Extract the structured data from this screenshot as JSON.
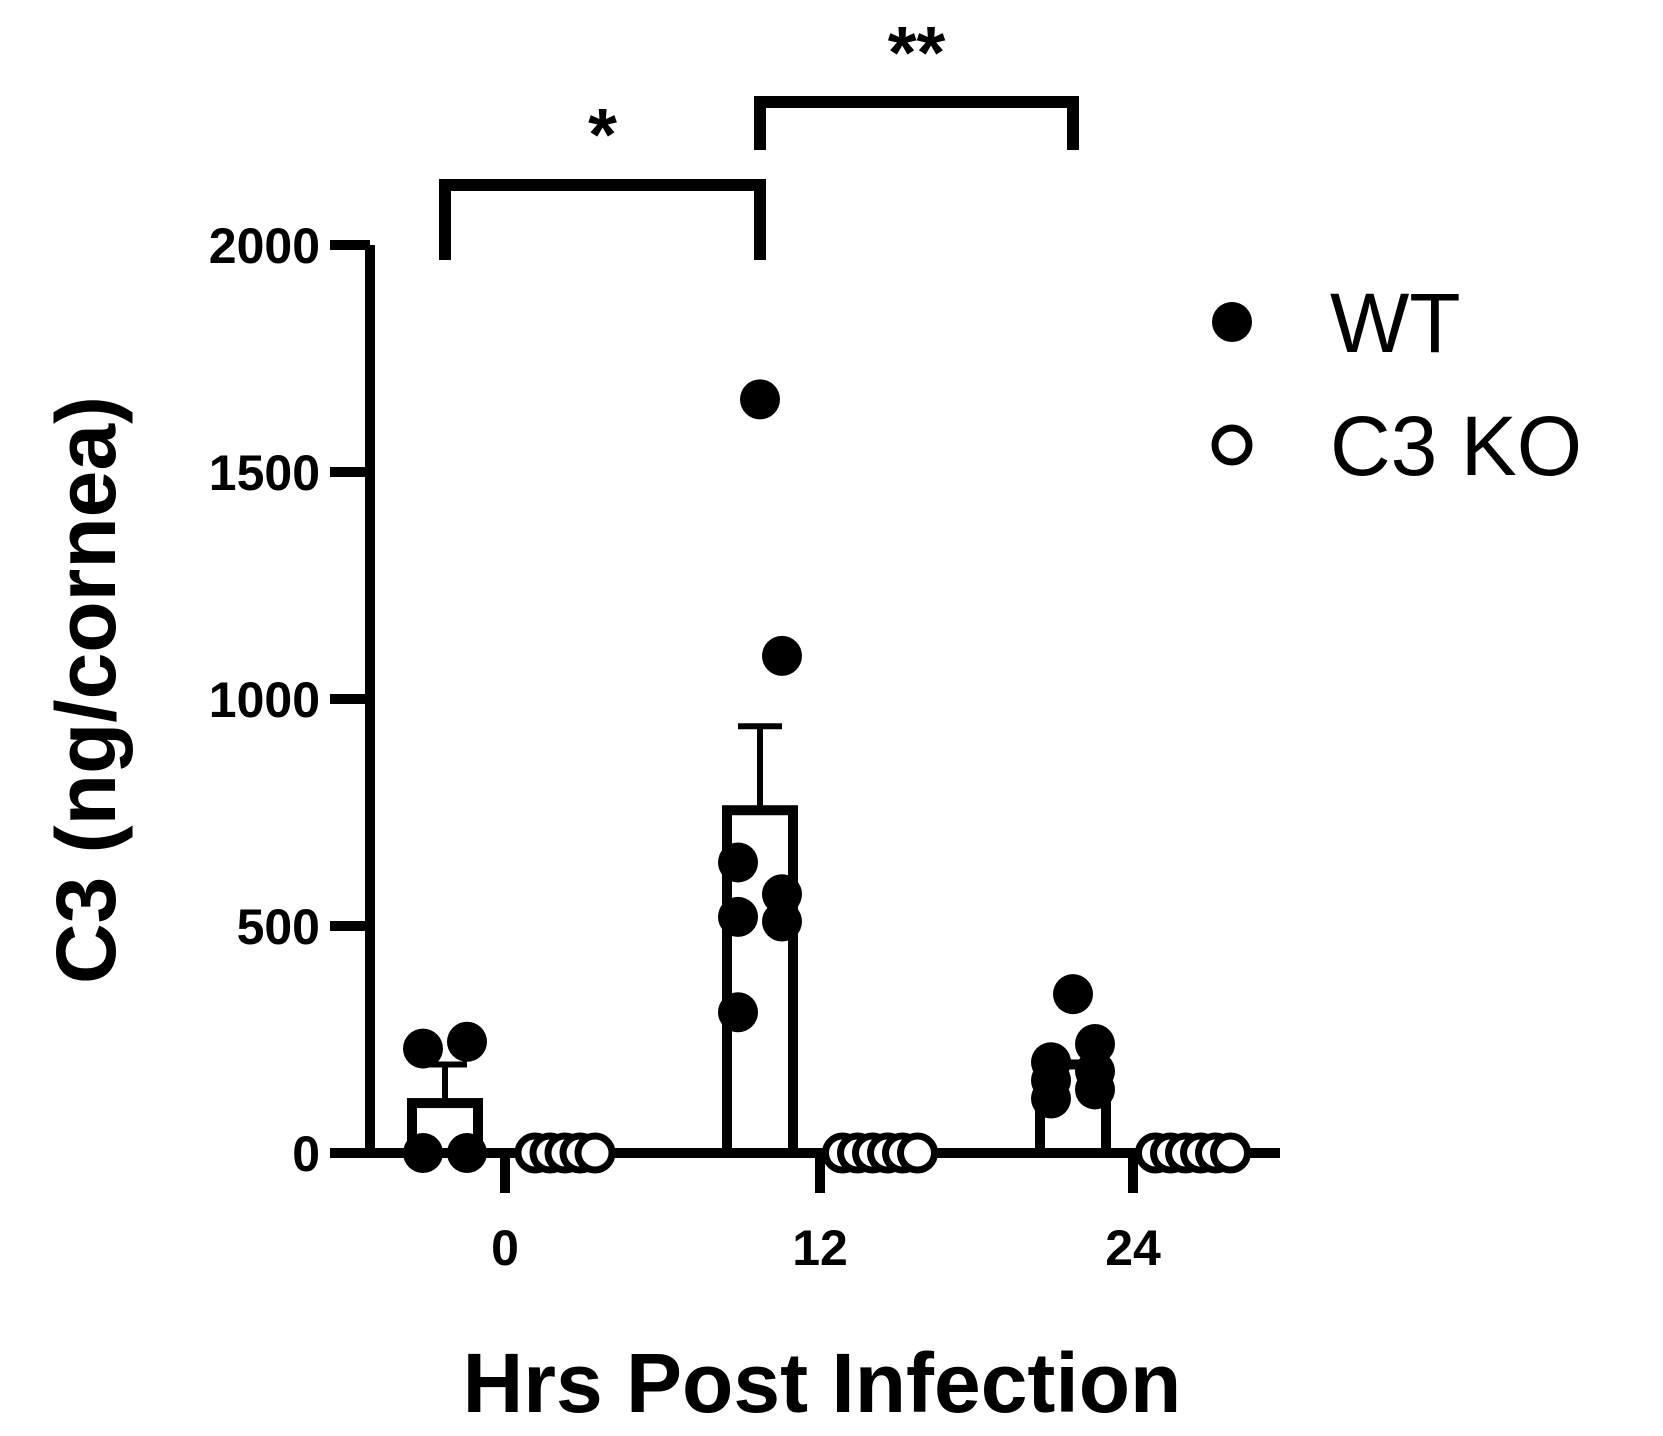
{
  "chart_data": {
    "type": "bar",
    "title": "",
    "xlabel": "Hrs Post Infection",
    "ylabel": "C3 (ng/cornea)",
    "ylim": [
      0,
      2000
    ],
    "yticks": [
      0,
      500,
      1000,
      1500,
      2000
    ],
    "categories": [
      "0",
      "12",
      "24"
    ],
    "legend": {
      "position": "top-right"
    },
    "series": [
      {
        "name": "WT",
        "marker": "filled-circle",
        "color": "#000000",
        "means": [
          110,
          755,
          195
        ],
        "sem": [
          85,
          185,
          0
        ],
        "points": [
          [
            230,
            245,
            0,
            0
          ],
          [
            1660,
            1095,
            640,
            570,
            520,
            510,
            310
          ],
          [
            350,
            240,
            200,
            180,
            160,
            140,
            120
          ]
        ]
      },
      {
        "name": "C3 KO",
        "marker": "open-circle",
        "color": "#000000",
        "means": [
          0,
          0,
          0
        ],
        "sem": [
          0,
          0,
          0
        ],
        "points": [
          [
            0,
            0,
            0,
            0,
            0
          ],
          [
            0,
            0,
            0,
            0,
            0,
            0
          ],
          [
            0,
            0,
            0,
            0,
            0,
            0
          ]
        ]
      }
    ],
    "significance": [
      {
        "from": "0",
        "to": "12",
        "label": "*"
      },
      {
        "from": "12",
        "to": "24",
        "label": "**"
      }
    ]
  }
}
